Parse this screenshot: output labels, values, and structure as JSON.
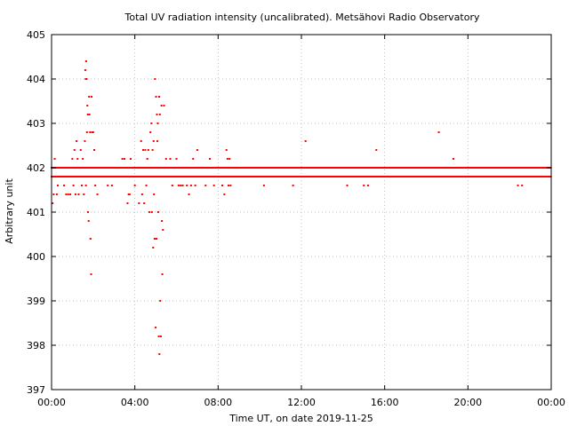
{
  "chart_data": {
    "type": "scatter",
    "title": "Total UV radiation intensity (uncalibrated). Metsähovi Radio Observatory",
    "xlabel": "Time UT, on date 2019-11-25",
    "ylabel": "Arbitrary unit",
    "xlim": [
      0,
      24
    ],
    "ylim": [
      397,
      405
    ],
    "xticks": [
      0,
      4,
      8,
      12,
      16,
      20,
      24
    ],
    "xtick_labels": [
      "00:00",
      "04:00",
      "08:00",
      "12:00",
      "16:00",
      "20:00",
      "00:00"
    ],
    "yticks": [
      397,
      398,
      399,
      400,
      401,
      402,
      403,
      404,
      405
    ],
    "ytick_labels": [
      "397",
      "398",
      "399",
      "400",
      "401",
      "402",
      "403",
      "404",
      "405"
    ],
    "grid": true,
    "grid_style": "dotted",
    "point_color": "#ff0000",
    "series": [
      {
        "baseline_upper": 402.0,
        "baseline_lower": 401.8,
        "baseline_x_range": [
          0.0,
          24.0
        ],
        "points": [
          [
            0.05,
            401.2
          ],
          [
            0.1,
            401.4
          ],
          [
            0.15,
            402.2
          ],
          [
            0.2,
            401.8
          ],
          [
            0.25,
            401.4
          ],
          [
            0.3,
            401.6
          ],
          [
            0.4,
            401.8
          ],
          [
            0.5,
            401.8
          ],
          [
            0.6,
            401.6
          ],
          [
            0.7,
            401.4
          ],
          [
            0.8,
            401.4
          ],
          [
            0.9,
            401.4
          ],
          [
            1.0,
            402.2
          ],
          [
            1.05,
            401.6
          ],
          [
            1.1,
            402.4
          ],
          [
            1.15,
            401.4
          ],
          [
            1.2,
            402.6
          ],
          [
            1.25,
            402.2
          ],
          [
            1.3,
            401.4
          ],
          [
            1.35,
            401.8
          ],
          [
            1.4,
            402.4
          ],
          [
            1.45,
            401.6
          ],
          [
            1.5,
            402.2
          ],
          [
            1.55,
            401.4
          ],
          [
            1.6,
            402.6
          ],
          [
            1.65,
            401.6
          ],
          [
            1.62,
            404.2
          ],
          [
            1.64,
            404.0
          ],
          [
            1.66,
            404.4
          ],
          [
            1.68,
            404.0
          ],
          [
            1.7,
            402.8
          ],
          [
            1.72,
            403.4
          ],
          [
            1.74,
            403.2
          ],
          [
            1.75,
            401.0
          ],
          [
            1.78,
            400.8
          ],
          [
            1.8,
            403.6
          ],
          [
            1.82,
            403.2
          ],
          [
            1.85,
            402.8
          ],
          [
            1.87,
            400.4
          ],
          [
            1.9,
            399.6
          ],
          [
            1.92,
            403.6
          ],
          [
            1.95,
            402.8
          ],
          [
            2.0,
            402.8
          ],
          [
            2.05,
            402.4
          ],
          [
            2.1,
            401.6
          ],
          [
            2.2,
            401.4
          ],
          [
            2.3,
            401.8
          ],
          [
            2.5,
            401.8
          ],
          [
            2.7,
            401.6
          ],
          [
            2.9,
            401.6
          ],
          [
            3.2,
            401.8
          ],
          [
            3.4,
            402.2
          ],
          [
            3.5,
            402.2
          ],
          [
            3.6,
            401.8
          ],
          [
            3.65,
            401.2
          ],
          [
            3.7,
            401.4
          ],
          [
            3.75,
            401.4
          ],
          [
            3.8,
            402.2
          ],
          [
            3.9,
            401.8
          ],
          [
            4.0,
            401.6
          ],
          [
            4.1,
            402.0
          ],
          [
            4.2,
            401.2
          ],
          [
            4.3,
            402.6
          ],
          [
            4.35,
            401.4
          ],
          [
            4.4,
            402.4
          ],
          [
            4.45,
            401.2
          ],
          [
            4.5,
            402.4
          ],
          [
            4.55,
            401.6
          ],
          [
            4.6,
            402.2
          ],
          [
            4.65,
            402.4
          ],
          [
            4.7,
            401.0
          ],
          [
            4.75,
            402.8
          ],
          [
            4.8,
            403.0
          ],
          [
            4.82,
            401.0
          ],
          [
            4.85,
            402.4
          ],
          [
            4.88,
            400.2
          ],
          [
            4.9,
            402.6
          ],
          [
            4.92,
            401.4
          ],
          [
            4.95,
            400.4
          ],
          [
            4.97,
            404.0
          ],
          [
            5.0,
            398.4
          ],
          [
            5.02,
            403.6
          ],
          [
            5.04,
            400.4
          ],
          [
            5.06,
            403.2
          ],
          [
            5.08,
            402.6
          ],
          [
            5.1,
            403.0
          ],
          [
            5.12,
            401.0
          ],
          [
            5.15,
            398.2
          ],
          [
            5.17,
            403.6
          ],
          [
            5.18,
            397.8
          ],
          [
            5.2,
            403.2
          ],
          [
            5.22,
            399.0
          ],
          [
            5.25,
            398.2
          ],
          [
            5.28,
            403.4
          ],
          [
            5.3,
            400.8
          ],
          [
            5.32,
            399.6
          ],
          [
            5.35,
            400.6
          ],
          [
            5.4,
            403.4
          ],
          [
            5.45,
            402.0
          ],
          [
            5.5,
            402.2
          ],
          [
            5.6,
            401.8
          ],
          [
            5.7,
            402.2
          ],
          [
            5.8,
            401.6
          ],
          [
            5.9,
            401.8
          ],
          [
            6.0,
            402.2
          ],
          [
            6.1,
            401.6
          ],
          [
            6.2,
            401.6
          ],
          [
            6.3,
            401.6
          ],
          [
            6.4,
            401.8
          ],
          [
            6.5,
            401.6
          ],
          [
            6.6,
            401.4
          ],
          [
            6.7,
            401.6
          ],
          [
            6.8,
            402.2
          ],
          [
            6.9,
            401.6
          ],
          [
            7.0,
            402.4
          ],
          [
            7.2,
            401.8
          ],
          [
            7.4,
            401.6
          ],
          [
            7.6,
            402.2
          ],
          [
            7.8,
            401.6
          ],
          [
            8.0,
            401.8
          ],
          [
            8.2,
            401.6
          ],
          [
            8.3,
            401.4
          ],
          [
            8.4,
            402.4
          ],
          [
            8.45,
            402.2
          ],
          [
            8.5,
            401.6
          ],
          [
            8.55,
            402.2
          ],
          [
            8.6,
            401.6
          ],
          [
            8.7,
            401.8
          ],
          [
            10.2,
            401.6
          ],
          [
            11.6,
            401.6
          ],
          [
            12.2,
            402.6
          ],
          [
            13.0,
            401.8
          ],
          [
            14.2,
            401.6
          ],
          [
            15.0,
            401.6
          ],
          [
            15.2,
            401.6
          ],
          [
            15.6,
            402.4
          ],
          [
            18.6,
            402.8
          ],
          [
            19.3,
            402.2
          ],
          [
            22.4,
            401.6
          ],
          [
            22.6,
            401.6
          ]
        ]
      }
    ]
  }
}
